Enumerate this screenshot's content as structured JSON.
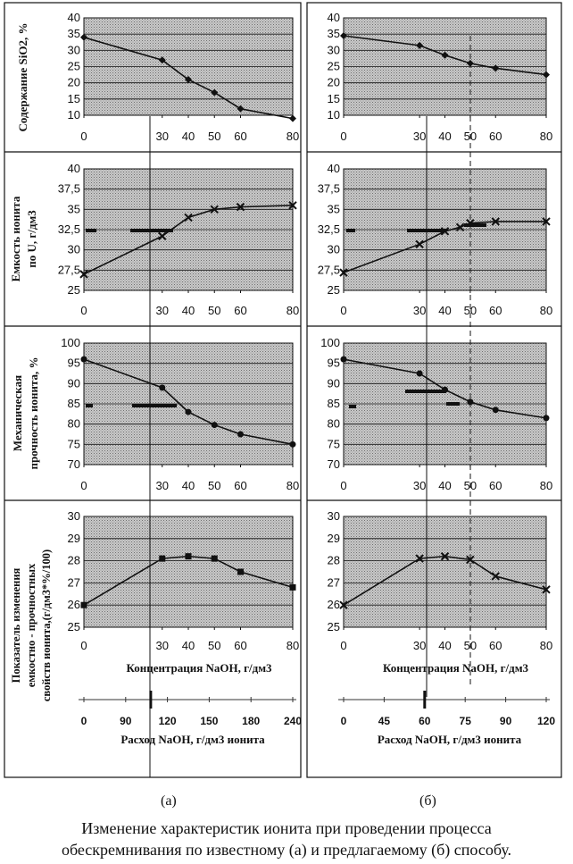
{
  "figure": {
    "label_a": "(а)",
    "label_b": "(б)",
    "caption_line1": "Изменение характеристик ионита при проведении процесса",
    "caption_line2": "обескремнивания по известному (а) и предлагаемому (б) способу."
  },
  "chart_data": [
    {
      "type": "line",
      "panel": "a",
      "row": 1,
      "ylabel": "Содержание SiO2, %",
      "x": [
        0,
        30,
        40,
        50,
        60,
        80
      ],
      "y": [
        34,
        27,
        21,
        17,
        12,
        9
      ],
      "ylim": [
        10,
        40
      ],
      "yticks": [
        10,
        15,
        20,
        25,
        30,
        35,
        40
      ],
      "xticks": [
        0,
        30,
        40,
        50,
        60,
        80
      ],
      "marker": "diamond",
      "grid": true
    },
    {
      "type": "line",
      "panel": "b",
      "row": 1,
      "ylabel": "",
      "x": [
        0,
        30,
        40,
        50,
        60,
        80
      ],
      "y": [
        34.5,
        31.5,
        28.5,
        26,
        24.5,
        22.5
      ],
      "ylim": [
        10,
        40
      ],
      "yticks": [
        10,
        15,
        20,
        25,
        30,
        35,
        40
      ],
      "xticks": [
        0,
        30,
        40,
        50,
        60,
        80
      ],
      "marker": "diamond",
      "grid": true
    },
    {
      "type": "line",
      "panel": "a",
      "row": 2,
      "ylabel": "Емкость ионита по U, г/дм3",
      "x": [
        0,
        30,
        40,
        50,
        60,
        80
      ],
      "y": [
        27,
        31.7,
        34,
        35,
        35.3,
        35.5
      ],
      "ylim": [
        25,
        40
      ],
      "yticks": [
        "25",
        "27,5",
        "30",
        "32,5",
        "35",
        "37,5",
        "40"
      ],
      "xticks": [
        0,
        30,
        40,
        50,
        60,
        80
      ],
      "marker": "x",
      "grid": true
    },
    {
      "type": "line",
      "panel": "b",
      "row": 2,
      "ylabel": "",
      "x": [
        0,
        30,
        40,
        46,
        50,
        60,
        80
      ],
      "y": [
        27.2,
        30.7,
        32.3,
        32.8,
        33.3,
        33.5,
        33.5
      ],
      "ylim": [
        25,
        40
      ],
      "yticks": [
        "25",
        "27,5",
        "30",
        "32,5",
        "35",
        "37,5",
        "40"
      ],
      "xticks": [
        0,
        30,
        40,
        50,
        60,
        80
      ],
      "marker": "x",
      "grid": true
    },
    {
      "type": "line",
      "panel": "a",
      "row": 3,
      "ylabel": "Механическая прочность ионита, %",
      "x": [
        0,
        30,
        40,
        50,
        60,
        80
      ],
      "y": [
        96,
        89,
        83,
        79.8,
        77.5,
        75
      ],
      "ylim": [
        70,
        100
      ],
      "yticks": [
        70,
        75,
        80,
        85,
        90,
        95,
        100
      ],
      "xticks": [
        0,
        30,
        40,
        50,
        60,
        80
      ],
      "marker": "circle",
      "grid": true
    },
    {
      "type": "line",
      "panel": "b",
      "row": 3,
      "ylabel": "",
      "x": [
        0,
        30,
        40,
        50,
        60,
        80
      ],
      "y": [
        96,
        92.5,
        88.5,
        85.5,
        83.5,
        81.5
      ],
      "ylim": [
        70,
        100
      ],
      "yticks": [
        70,
        75,
        80,
        85,
        90,
        95,
        100
      ],
      "xticks": [
        0,
        30,
        40,
        50,
        60,
        80
      ],
      "marker": "circle",
      "grid": true
    },
    {
      "type": "line",
      "panel": "a",
      "row": 4,
      "ylabel": "Показатель изменения емкостно - прочностных свойств ионита,(г/дм3*%/100)",
      "xlabel": "Концентрация NaOH, г/дм3",
      "x": [
        0,
        30,
        40,
        50,
        60,
        80
      ],
      "y": [
        26,
        28.1,
        28.2,
        28.1,
        27.5,
        26.8
      ],
      "ylim": [
        25,
        30
      ],
      "yticks": [
        25,
        26,
        27,
        28,
        29,
        30
      ],
      "xticks": [
        0,
        30,
        40,
        50,
        60,
        80
      ],
      "marker": "square",
      "grid": true
    },
    {
      "type": "line",
      "panel": "b",
      "row": 4,
      "ylabel": "",
      "xlabel": "Концентрация NaOH, г/дм3",
      "x": [
        0,
        30,
        40,
        50,
        60,
        80
      ],
      "y": [
        26,
        28.1,
        28.2,
        28.05,
        27.3,
        26.7
      ],
      "ylim": [
        25,
        30
      ],
      "yticks": [
        25,
        26,
        27,
        28,
        29,
        30
      ],
      "xticks": [
        0,
        30,
        40,
        50,
        60,
        80
      ],
      "marker": "x",
      "grid": true
    },
    {
      "type": "axis",
      "panel": "a",
      "row": 5,
      "xlabel": "Расход NaOH, г/дм3 ионита",
      "xticks": [
        0,
        90,
        120,
        150,
        180,
        240
      ],
      "marker_at_index": 1.6
    },
    {
      "type": "axis",
      "panel": "b",
      "row": 5,
      "xlabel": "Расход NaOH, г/дм3 ионита",
      "xticks": [
        0,
        45,
        60,
        75,
        90,
        120
      ],
      "marker_at_index": 2
    }
  ]
}
